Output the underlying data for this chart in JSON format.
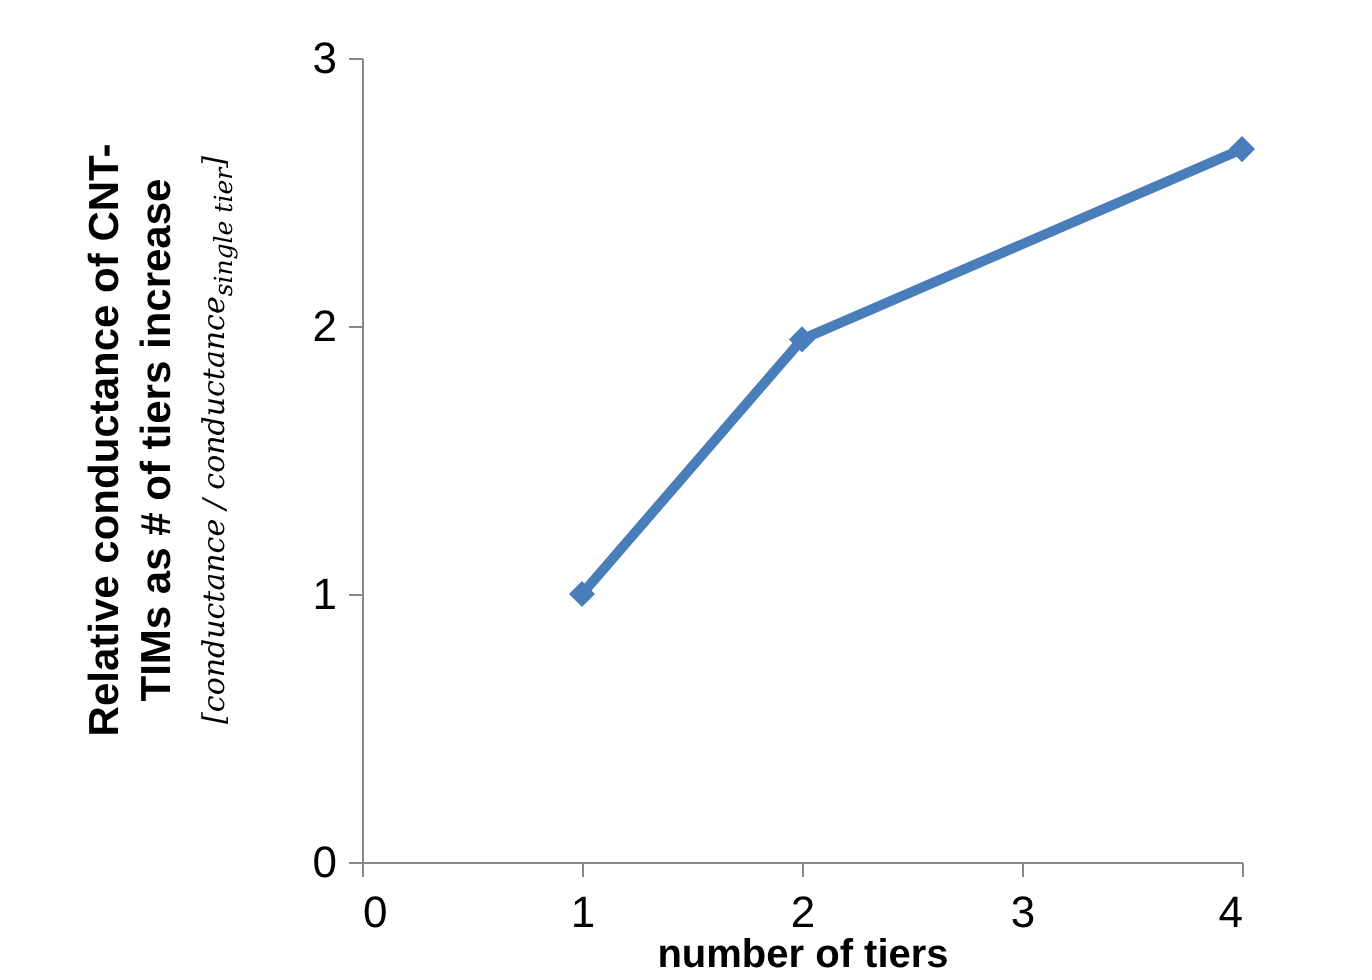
{
  "chart_data": {
    "type": "line",
    "ylabel": "Relative conductance of CNT-TIMs as # of tiers increase",
    "xlabel": "number of tiers",
    "annotations": [
      "[conductance / conductance$_{single tier}$]"
    ],
    "x": [
      1,
      2,
      4
    ],
    "series": [
      {
        "color": "#4a7ebb",
        "values": [
          1,
          1.95,
          2.66
        ]
      }
    ],
    "xlim": [
      0,
      4
    ],
    "xticks": [
      0,
      1,
      2,
      3,
      4
    ],
    "ylim": [
      0,
      3
    ],
    "yticks": [
      0,
      1,
      2,
      3
    ],
    "grid": false,
    "legend": false,
    "marker": "diamond",
    "line_style": "solid"
  }
}
